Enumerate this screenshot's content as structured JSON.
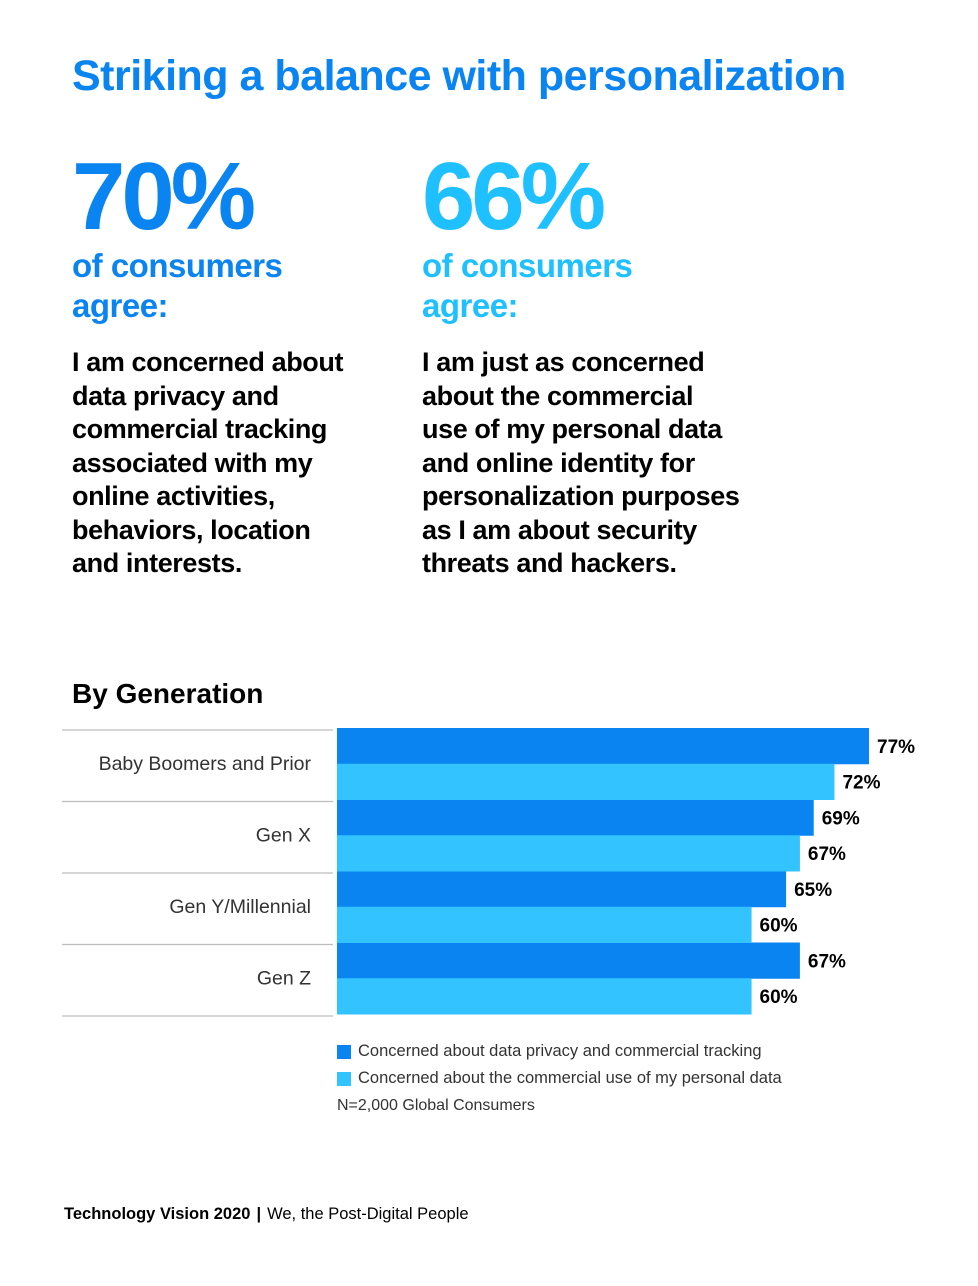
{
  "title": "Striking a balance with personalization",
  "stats": [
    {
      "value": "70%",
      "subtitle_line1": "of consumers",
      "subtitle_line2": "agree:",
      "quote_lines": [
        "I am concerned about",
        "data privacy and",
        "commercial tracking",
        "associated with my",
        "online activities,",
        "behaviors, location",
        "and interests."
      ]
    },
    {
      "value": "66%",
      "subtitle_line1": "of consumers",
      "subtitle_line2": "agree:",
      "quote_lines": [
        "I am just as concerned",
        "about the commercial",
        "use of my personal data",
        "and online identity for",
        "personalization purposes",
        "as I am about security",
        "threats and hackers."
      ]
    }
  ],
  "section_title": "By Generation",
  "colors": {
    "primary": "#0a84f0",
    "secondary": "#33c3ff",
    "divider": "#bdbdbd"
  },
  "chart_data": {
    "type": "bar",
    "orientation": "horizontal",
    "categories": [
      "Baby Boomers and Prior",
      "Gen X",
      "Gen Y/Millennial",
      "Gen Z"
    ],
    "series": [
      {
        "name": "Concerned about data privacy and commercial tracking",
        "values": [
          77,
          69,
          65,
          67
        ],
        "labels": [
          "77%",
          "69%",
          "65%",
          "67%"
        ]
      },
      {
        "name": "Concerned about the commercial use of my personal data",
        "values": [
          72,
          67,
          60,
          60
        ],
        "labels": [
          "72%",
          "67%",
          "60%",
          "60%"
        ]
      }
    ],
    "xlim": [
      0,
      77
    ],
    "grid": false,
    "legend_position": "bottom"
  },
  "note": "N=2,000 Global Consumers",
  "footer": {
    "brand": "Technology Vision 2020",
    "separator": "|",
    "tagline": "We, the Post-Digital People"
  }
}
